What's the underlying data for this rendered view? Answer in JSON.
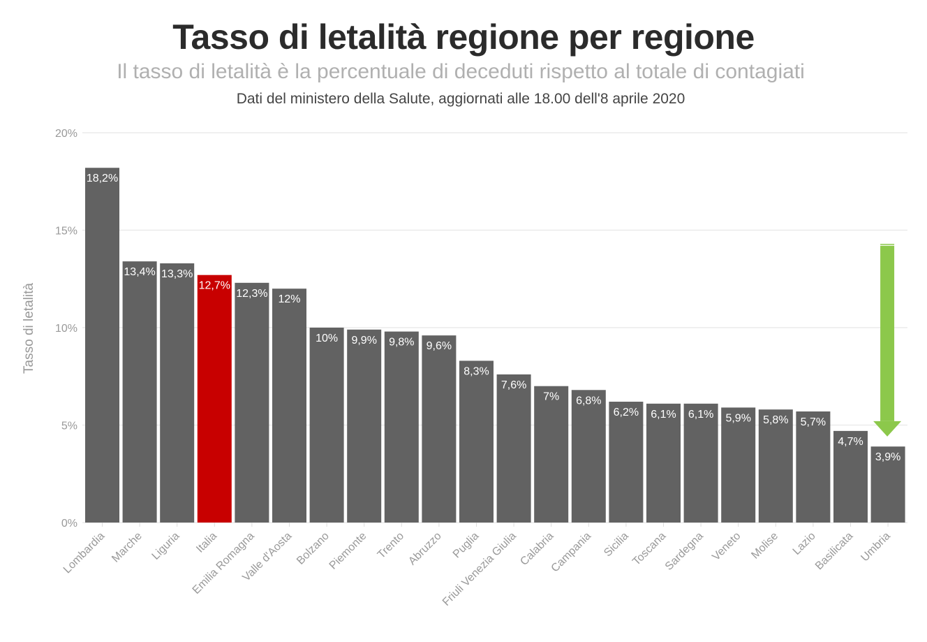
{
  "chart_data": {
    "type": "bar",
    "title": "Tasso di letalità regione per regione",
    "subtitle": "Il tasso di letalità è la percentuale di deceduti rispetto al totale di contagiati",
    "source": "Dati del ministero della Salute, aggiornati alle 18.00 dell'8 aprile 2020",
    "xlabel": "",
    "ylabel": "Tasso di letalità",
    "ylim": [
      0,
      20
    ],
    "yticks": [
      0,
      5,
      10,
      15,
      20
    ],
    "ytick_labels": [
      "0%",
      "5%",
      "10%",
      "15%",
      "20%"
    ],
    "grid": true,
    "categories": [
      "Lombardia",
      "Marche",
      "Liguria",
      "Italia",
      "Emilia Romagna",
      "Valle d'Aosta",
      "Bolzano",
      "Piemonte",
      "Trento",
      "Abruzzo",
      "Puglia",
      "Friuli Venezia Giulia",
      "Calabria",
      "Campania",
      "Sicilia",
      "Toscana",
      "Sardegna",
      "Veneto",
      "Molise",
      "Lazio",
      "Basilicata",
      "Umbria"
    ],
    "values": [
      18.2,
      13.4,
      13.3,
      12.7,
      12.3,
      12,
      10,
      9.9,
      9.8,
      9.6,
      8.3,
      7.6,
      7,
      6.8,
      6.2,
      6.1,
      6.1,
      5.9,
      5.8,
      5.7,
      4.7,
      3.9
    ],
    "data_labels": [
      "18,2%",
      "13,4%",
      "13,3%",
      "12,7%",
      "12,3%",
      "12%",
      "10%",
      "9,9%",
      "9,8%",
      "9,6%",
      "8,3%",
      "7,6%",
      "7%",
      "6,8%",
      "6,2%",
      "6,1%",
      "6,1%",
      "5,9%",
      "5,8%",
      "5,7%",
      "4,7%",
      "3,9%"
    ],
    "highlight_category": "Italia",
    "colors": {
      "bar": "#626262",
      "highlight": "#c80000",
      "arrow": "#8cc84b",
      "grid": "#ebebeb"
    },
    "annotation": {
      "type": "arrow",
      "color": "#8cc84b",
      "points_to": "Umbria",
      "from_value": 14.2,
      "to_value": 4.7
    }
  }
}
